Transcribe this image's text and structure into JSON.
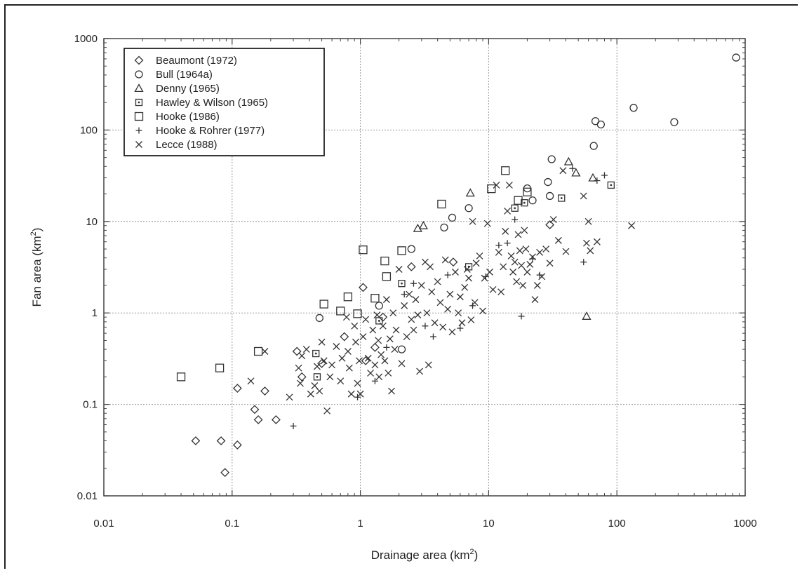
{
  "chart_data": {
    "type": "scatter",
    "xlabel": "Drainage area (km",
    "xlabel_sup": "2",
    "xlabel_end": ")",
    "ylabel": "Fan area (km",
    "ylabel_sup": "2",
    "ylabel_end": ")",
    "xscale": "log",
    "yscale": "log",
    "xlim": [
      0.01,
      1000
    ],
    "ylim": [
      0.01,
      1000
    ],
    "grid": true,
    "legend_position": "top-left",
    "x_ticks": [
      {
        "value": 0.01,
        "label": "0.01"
      },
      {
        "value": 0.1,
        "label": "0.1"
      },
      {
        "value": 1,
        "label": "1"
      },
      {
        "value": 10,
        "label": "10"
      },
      {
        "value": 100,
        "label": "100"
      },
      {
        "value": 1000,
        "label": "1000"
      }
    ],
    "y_ticks": [
      {
        "value": 0.01,
        "label": "0.01"
      },
      {
        "value": 0.1,
        "label": "0.1"
      },
      {
        "value": 1,
        "label": "1"
      },
      {
        "value": 10,
        "label": "10"
      },
      {
        "value": 100,
        "label": "100"
      },
      {
        "value": 1000,
        "label": "1000"
      }
    ],
    "series": [
      {
        "name": "Beaumont (1972)",
        "marker": "diamond",
        "points": [
          [
            0.052,
            0.04
          ],
          [
            0.082,
            0.04
          ],
          [
            0.088,
            0.018
          ],
          [
            0.11,
            0.036
          ],
          [
            0.15,
            0.088
          ],
          [
            0.16,
            0.068
          ],
          [
            0.18,
            0.14
          ],
          [
            0.22,
            0.068
          ],
          [
            0.11,
            0.15
          ],
          [
            0.32,
            0.38
          ],
          [
            0.35,
            0.2
          ],
          [
            0.5,
            0.28
          ],
          [
            0.75,
            0.55
          ],
          [
            1.05,
            1.9
          ],
          [
            1.1,
            0.3
          ],
          [
            1.3,
            0.42
          ],
          [
            1.5,
            0.9
          ],
          [
            2.5,
            3.2
          ],
          [
            5.3,
            3.6
          ],
          [
            30,
            9.2
          ]
        ]
      },
      {
        "name": "Bull (1964a)",
        "marker": "circle",
        "points": [
          [
            0.48,
            0.88
          ],
          [
            1.4,
            1.2
          ],
          [
            2.1,
            0.4
          ],
          [
            2.5,
            5.0
          ],
          [
            4.5,
            8.6
          ],
          [
            5.2,
            11
          ],
          [
            7.0,
            14
          ],
          [
            20,
            23
          ],
          [
            22,
            17
          ],
          [
            29,
            27
          ],
          [
            30,
            19
          ],
          [
            31,
            48
          ],
          [
            66,
            67
          ],
          [
            68,
            125
          ],
          [
            75,
            115
          ],
          [
            135,
            175
          ],
          [
            280,
            122
          ],
          [
            850,
            620
          ]
        ]
      },
      {
        "name": "Denny (1965)",
        "marker": "triangle",
        "points": [
          [
            2.8,
            8.4
          ],
          [
            3.1,
            9.0
          ],
          [
            7.2,
            20.5
          ],
          [
            42,
            45
          ],
          [
            48,
            34
          ],
          [
            58,
            0.92
          ],
          [
            65,
            30
          ]
        ]
      },
      {
        "name": "Hawley & Wilson (1965)",
        "marker": "boxdot",
        "points": [
          [
            0.45,
            0.36
          ],
          [
            0.46,
            0.2
          ],
          [
            1.4,
            0.82
          ],
          [
            2.1,
            2.1
          ],
          [
            7,
            3.2
          ],
          [
            16,
            14
          ],
          [
            19,
            16
          ],
          [
            37,
            18
          ],
          [
            90,
            25
          ]
        ]
      },
      {
        "name": "Hooke (1986)",
        "marker": "square",
        "points": [
          [
            0.04,
            0.2
          ],
          [
            0.08,
            0.25
          ],
          [
            0.16,
            0.38
          ],
          [
            0.52,
            1.25
          ],
          [
            0.7,
            1.05
          ],
          [
            0.8,
            1.5
          ],
          [
            0.95,
            0.98
          ],
          [
            1.05,
            4.9
          ],
          [
            1.3,
            1.45
          ],
          [
            1.55,
            3.7
          ],
          [
            1.6,
            2.5
          ],
          [
            2.1,
            4.8
          ],
          [
            4.3,
            15.5
          ],
          [
            10.5,
            22.8
          ],
          [
            13.5,
            36
          ],
          [
            17,
            17
          ],
          [
            20,
            21
          ]
        ]
      },
      {
        "name": "Hooke & Rohrer (1977)",
        "marker": "plus",
        "points": [
          [
            0.3,
            0.058
          ],
          [
            0.95,
            0.12
          ],
          [
            1.3,
            0.18
          ],
          [
            1.6,
            0.42
          ],
          [
            2.2,
            1.6
          ],
          [
            2.6,
            2.1
          ],
          [
            3.2,
            0.72
          ],
          [
            3.7,
            0.55
          ],
          [
            4.8,
            2.6
          ],
          [
            6.0,
            0.68
          ],
          [
            7.5,
            1.2
          ],
          [
            9.5,
            2.5
          ],
          [
            12,
            5.5
          ],
          [
            14,
            5.8
          ],
          [
            16,
            10.5
          ],
          [
            18,
            0.92
          ],
          [
            22,
            3.9
          ],
          [
            25,
            2.6
          ],
          [
            45,
            38
          ],
          [
            55,
            3.6
          ],
          [
            70,
            28
          ],
          [
            80,
            32
          ]
        ]
      },
      {
        "name": "Lecce (1988)",
        "marker": "cross",
        "points": [
          [
            0.14,
            0.18
          ],
          [
            0.18,
            0.38
          ],
          [
            0.28,
            0.12
          ],
          [
            0.33,
            0.25
          ],
          [
            0.34,
            0.17
          ],
          [
            0.35,
            0.34
          ],
          [
            0.38,
            0.4
          ],
          [
            0.41,
            0.13
          ],
          [
            0.44,
            0.16
          ],
          [
            0.46,
            0.26
          ],
          [
            0.48,
            0.14
          ],
          [
            0.5,
            0.48
          ],
          [
            0.52,
            0.3
          ],
          [
            0.55,
            0.085
          ],
          [
            0.58,
            0.2
          ],
          [
            0.6,
            0.27
          ],
          [
            0.65,
            0.43
          ],
          [
            0.7,
            0.18
          ],
          [
            0.72,
            0.32
          ],
          [
            0.78,
            0.9
          ],
          [
            0.8,
            0.38
          ],
          [
            0.82,
            0.25
          ],
          [
            0.85,
            0.13
          ],
          [
            0.9,
            0.72
          ],
          [
            0.92,
            0.48
          ],
          [
            0.95,
            0.17
          ],
          [
            0.98,
            0.3
          ],
          [
            1.0,
            0.13
          ],
          [
            1.05,
            0.55
          ],
          [
            1.1,
            0.85
          ],
          [
            1.15,
            0.32
          ],
          [
            1.2,
            0.22
          ],
          [
            1.25,
            0.65
          ],
          [
            1.3,
            0.27
          ],
          [
            1.35,
            0.95
          ],
          [
            1.38,
            0.5
          ],
          [
            1.4,
            0.2
          ],
          [
            1.45,
            0.35
          ],
          [
            1.5,
            0.72
          ],
          [
            1.55,
            0.3
          ],
          [
            1.6,
            1.4
          ],
          [
            1.65,
            0.22
          ],
          [
            1.7,
            0.52
          ],
          [
            1.75,
            0.14
          ],
          [
            1.8,
            1.0
          ],
          [
            1.85,
            0.4
          ],
          [
            1.9,
            0.65
          ],
          [
            2.0,
            3.0
          ],
          [
            2.1,
            0.28
          ],
          [
            2.2,
            1.2
          ],
          [
            2.3,
            0.55
          ],
          [
            2.4,
            1.6
          ],
          [
            2.5,
            0.85
          ],
          [
            2.6,
            0.65
          ],
          [
            2.7,
            1.4
          ],
          [
            2.8,
            0.95
          ],
          [
            2.9,
            0.23
          ],
          [
            3.0,
            2.0
          ],
          [
            3.2,
            3.6
          ],
          [
            3.3,
            1.0
          ],
          [
            3.4,
            0.27
          ],
          [
            3.5,
            3.2
          ],
          [
            3.6,
            1.7
          ],
          [
            3.8,
            0.78
          ],
          [
            4.0,
            2.2
          ],
          [
            4.2,
            1.3
          ],
          [
            4.4,
            0.7
          ],
          [
            4.6,
            3.8
          ],
          [
            4.8,
            1.1
          ],
          [
            5.0,
            1.6
          ],
          [
            5.2,
            0.62
          ],
          [
            5.5,
            2.8
          ],
          [
            5.8,
            1.0
          ],
          [
            6.0,
            1.5
          ],
          [
            6.2,
            0.78
          ],
          [
            6.5,
            1.9
          ],
          [
            6.8,
            3.0
          ],
          [
            7.0,
            2.4
          ],
          [
            7.3,
            0.84
          ],
          [
            7.5,
            10
          ],
          [
            7.8,
            1.3
          ],
          [
            8.0,
            3.5
          ],
          [
            8.5,
            4.2
          ],
          [
            9.0,
            1.05
          ],
          [
            9.3,
            2.4
          ],
          [
            9.8,
            9.5
          ],
          [
            10.2,
            2.8
          ],
          [
            10.8,
            1.8
          ],
          [
            11.5,
            25
          ],
          [
            12.0,
            4.6
          ],
          [
            12.5,
            1.7
          ],
          [
            13.0,
            3.2
          ],
          [
            13.5,
            7.8
          ],
          [
            14,
            13
          ],
          [
            14.5,
            25
          ],
          [
            15,
            4.2
          ],
          [
            15.5,
            2.8
          ],
          [
            16,
            3.6
          ],
          [
            16.5,
            2.2
          ],
          [
            17,
            7.2
          ],
          [
            17.5,
            4.8
          ],
          [
            18,
            3.3
          ],
          [
            18.5,
            2.0
          ],
          [
            19,
            8.0
          ],
          [
            19.5,
            5.0
          ],
          [
            20,
            2.8
          ],
          [
            21,
            3.4
          ],
          [
            22,
            4.1
          ],
          [
            23,
            1.4
          ],
          [
            24,
            2.0
          ],
          [
            25,
            4.6
          ],
          [
            26,
            2.5
          ],
          [
            28,
            5.0
          ],
          [
            30,
            3.5
          ],
          [
            32,
            10.5
          ],
          [
            35,
            6.2
          ],
          [
            38,
            36
          ],
          [
            40,
            4.7
          ],
          [
            55,
            19
          ],
          [
            58,
            5.8
          ],
          [
            60,
            10
          ],
          [
            62,
            4.8
          ],
          [
            70,
            6.0
          ],
          [
            130,
            9.0
          ]
        ]
      }
    ]
  }
}
